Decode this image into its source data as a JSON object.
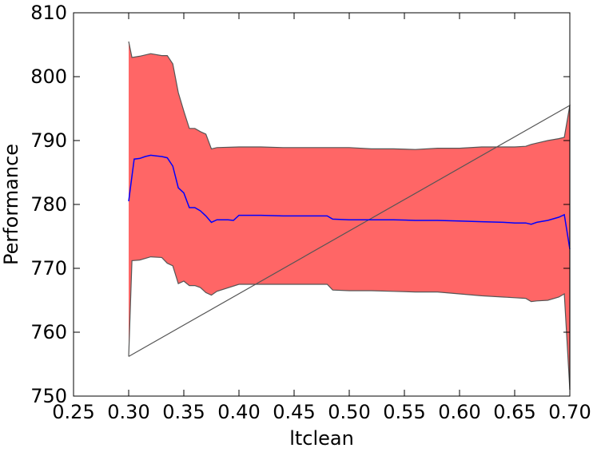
{
  "chart_data": {
    "type": "area",
    "title": "",
    "xlabel": "ltclean",
    "ylabel": "Performance",
    "xlim": [
      0.25,
      0.7
    ],
    "ylim": [
      750,
      810
    ],
    "xticks": [
      "0.25",
      "0.30",
      "0.35",
      "0.40",
      "0.45",
      "0.50",
      "0.55",
      "0.60",
      "0.65",
      "0.70"
    ],
    "yticks": [
      "750",
      "760",
      "770",
      "780",
      "790",
      "800",
      "810"
    ],
    "grid": false,
    "legend": "none",
    "colors": {
      "band": "#ff6666",
      "band_edge": "#555555",
      "mean": "#0000ff"
    },
    "series": [
      {
        "role": "mean",
        "x": [
          0.3,
          0.305,
          0.31,
          0.315,
          0.32,
          0.325,
          0.33,
          0.335,
          0.34,
          0.345,
          0.35,
          0.355,
          0.36,
          0.365,
          0.37,
          0.375,
          0.38,
          0.39,
          0.395,
          0.4,
          0.42,
          0.44,
          0.46,
          0.48,
          0.485,
          0.5,
          0.52,
          0.54,
          0.56,
          0.58,
          0.6,
          0.62,
          0.64,
          0.65,
          0.66,
          0.665,
          0.67,
          0.68,
          0.69,
          0.695,
          0.7
        ],
        "y": [
          780.5,
          787.1,
          787.2,
          787.5,
          787.7,
          787.6,
          787.5,
          787.3,
          786.0,
          782.6,
          781.8,
          779.5,
          779.5,
          779.0,
          778.2,
          777.2,
          777.6,
          777.6,
          777.5,
          778.3,
          778.3,
          778.2,
          778.2,
          778.2,
          777.7,
          777.6,
          777.6,
          777.6,
          777.5,
          777.5,
          777.4,
          777.3,
          777.2,
          777.1,
          777.1,
          776.9,
          777.2,
          777.5,
          778.0,
          778.4,
          773.0
        ]
      },
      {
        "role": "upper",
        "x": [
          0.3,
          0.303,
          0.31,
          0.32,
          0.33,
          0.335,
          0.34,
          0.345,
          0.35,
          0.355,
          0.36,
          0.365,
          0.37,
          0.375,
          0.38,
          0.4,
          0.42,
          0.44,
          0.46,
          0.48,
          0.5,
          0.52,
          0.54,
          0.56,
          0.58,
          0.6,
          0.62,
          0.64,
          0.65,
          0.66,
          0.665,
          0.67,
          0.68,
          0.69,
          0.695,
          0.7
        ],
        "y": [
          805.5,
          803.0,
          803.2,
          803.6,
          803.3,
          803.3,
          802.0,
          797.5,
          794.6,
          791.9,
          791.9,
          791.4,
          791.0,
          788.7,
          788.9,
          789.0,
          789.0,
          788.9,
          788.9,
          788.9,
          788.9,
          788.7,
          788.7,
          788.6,
          788.8,
          788.8,
          789.0,
          789.0,
          789.0,
          789.1,
          789.4,
          789.6,
          790.0,
          790.3,
          790.5,
          795.5
        ]
      },
      {
        "role": "lower",
        "x": [
          0.3,
          0.303,
          0.31,
          0.32,
          0.33,
          0.335,
          0.34,
          0.345,
          0.35,
          0.355,
          0.36,
          0.365,
          0.37,
          0.375,
          0.38,
          0.4,
          0.42,
          0.44,
          0.46,
          0.48,
          0.485,
          0.5,
          0.52,
          0.54,
          0.56,
          0.58,
          0.6,
          0.62,
          0.64,
          0.65,
          0.66,
          0.665,
          0.67,
          0.68,
          0.69,
          0.695,
          0.7
        ],
        "y": [
          756.2,
          771.2,
          771.3,
          771.8,
          771.7,
          770.8,
          770.4,
          767.6,
          768.0,
          767.3,
          767.3,
          767.0,
          766.2,
          765.8,
          766.4,
          767.5,
          767.5,
          767.5,
          767.5,
          767.5,
          766.6,
          766.5,
          766.5,
          766.4,
          766.3,
          766.3,
          766.0,
          765.7,
          765.5,
          765.4,
          765.3,
          764.8,
          764.9,
          765.0,
          765.5,
          766.0,
          751.0
        ]
      }
    ]
  }
}
